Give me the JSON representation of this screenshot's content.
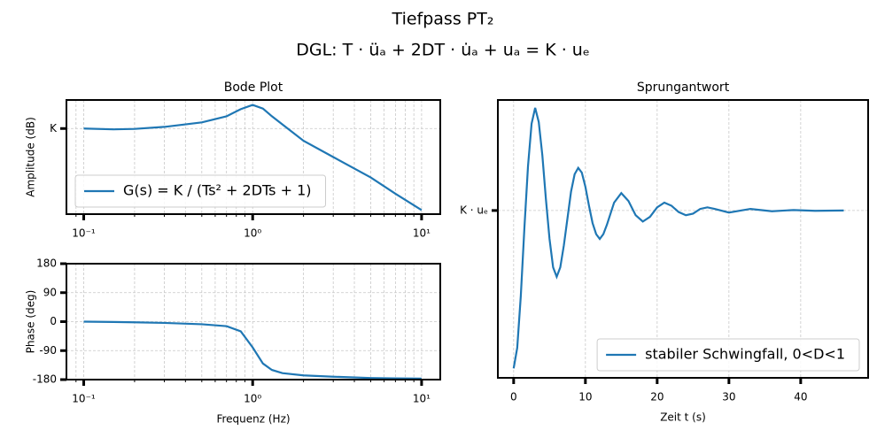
{
  "suptitle": [
    "Tiefpass PT₂",
    "DGL: T · üₐ + 2DT · u̇ₐ + uₐ = K · uₑ"
  ],
  "chart_data": [
    {
      "type": "line",
      "title": "Bode Plot",
      "ylabel": "Amplitude (dB)",
      "xscale": "log",
      "grid": true,
      "legend": "lower left",
      "x": [
        0.1,
        0.15,
        0.2,
        0.3,
        0.5,
        0.7,
        0.85,
        1.0,
        1.15,
        1.3,
        1.5,
        2,
        3,
        5,
        7,
        10
      ],
      "series": [
        {
          "name": "G(s) = K / (Ts² + 2DTs + 1)",
          "color": "#1f77b4",
          "values": [
            0,
            -0.4,
            -0.2,
            0.8,
            3,
            6,
            9.5,
            11.6,
            9.8,
            6,
            2,
            -6,
            -14,
            -24,
            -32,
            -40
          ]
        }
      ],
      "xlim": [
        0.079,
        12.9
      ],
      "ylim": [
        -42,
        14
      ],
      "xticks": [
        {
          "value": 0.1,
          "label": "10⁻¹"
        },
        {
          "value": 1,
          "label": "10⁰"
        },
        {
          "value": 10,
          "label": "10¹"
        }
      ],
      "xminorticks": [
        0.09,
        0.2,
        0.3,
        0.4,
        0.5,
        0.6,
        0.7,
        0.8,
        0.9,
        2,
        3,
        4,
        5,
        6,
        7,
        8,
        9
      ],
      "yticks": [
        {
          "value": 0,
          "label": "K"
        }
      ]
    },
    {
      "type": "line",
      "xlabel": "Frequenz (Hz)",
      "ylabel": "Phase (deg)",
      "xscale": "log",
      "grid": true,
      "x": [
        0.1,
        0.15,
        0.2,
        0.3,
        0.5,
        0.7,
        0.85,
        1.0,
        1.15,
        1.3,
        1.5,
        2,
        3,
        5,
        7,
        10
      ],
      "series": [
        {
          "color": "#1f77b4",
          "values": [
            0,
            -1,
            -2,
            -4,
            -8,
            -14,
            -30,
            -80,
            -130,
            -150,
            -160,
            -167,
            -171,
            -175,
            -176,
            -177
          ]
        }
      ],
      "xlim": [
        0.079,
        12.9
      ],
      "ylim": [
        -180,
        180
      ],
      "xticks": [
        {
          "value": 0.1,
          "label": "10⁻¹"
        },
        {
          "value": 1,
          "label": "10⁰"
        },
        {
          "value": 10,
          "label": "10¹"
        }
      ],
      "xminorticks": [
        0.09,
        0.2,
        0.3,
        0.4,
        0.5,
        0.6,
        0.7,
        0.8,
        0.9,
        2,
        3,
        4,
        5,
        6,
        7,
        8,
        9
      ],
      "yticks": [
        180,
        90,
        0,
        -90,
        -180
      ]
    },
    {
      "type": "line",
      "title": "Sprungantwort",
      "xlabel": "Zeit t (s)",
      "grid": true,
      "legend": "lower right",
      "x": [
        0,
        0.5,
        1,
        1.5,
        2,
        2.5,
        3,
        3.5,
        4,
        4.5,
        5,
        5.5,
        6,
        6.5,
        7,
        7.5,
        8,
        8.5,
        9,
        9.5,
        10,
        10.5,
        11,
        11.5,
        12,
        12.5,
        13,
        14,
        15,
        16,
        17,
        18,
        19,
        20,
        21,
        22,
        23,
        24,
        25,
        26,
        27,
        28,
        30,
        33,
        36,
        39,
        42,
        46
      ],
      "series": [
        {
          "name": "stabiler Schwingfall, 0<D<1",
          "color": "#1f77b4",
          "values": [
            0,
            0.13,
            0.46,
            0.89,
            1.28,
            1.55,
            1.65,
            1.56,
            1.35,
            1.07,
            0.82,
            0.64,
            0.58,
            0.64,
            0.78,
            0.95,
            1.12,
            1.23,
            1.27,
            1.24,
            1.15,
            1.03,
            0.92,
            0.85,
            0.82,
            0.85,
            0.91,
            1.05,
            1.11,
            1.06,
            0.97,
            0.93,
            0.96,
            1.02,
            1.05,
            1.03,
            0.99,
            0.97,
            0.98,
            1.01,
            1.02,
            1.01,
            0.987,
            1.01,
            0.995,
            1.003,
            0.998,
            1.0
          ]
        }
      ],
      "xlim": [
        -2.2,
        49.4
      ],
      "ylim": [
        -0.06,
        1.7
      ],
      "xticks": [
        0,
        10,
        20,
        30,
        40
      ],
      "yticks": [
        {
          "value": 1,
          "label": "K · uₑ"
        }
      ]
    }
  ]
}
